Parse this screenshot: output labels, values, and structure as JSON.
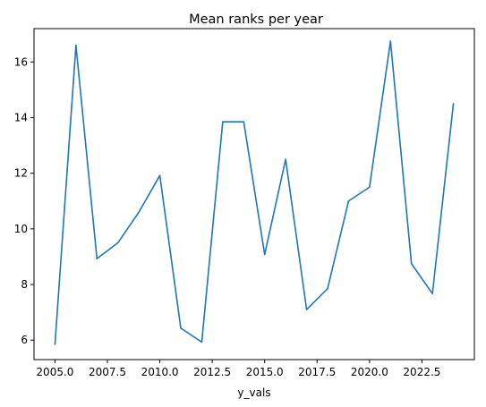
{
  "chart_data": {
    "type": "line",
    "title": "Mean ranks per year",
    "xlabel": "y_vals",
    "ylabel": "",
    "xlim": [
      2004.0,
      2025.0
    ],
    "ylim": [
      5.3,
      17.2
    ],
    "x_ticks": [
      2005.0,
      2007.5,
      2010.0,
      2012.5,
      2015.0,
      2017.5,
      2020.0,
      2022.5
    ],
    "x_tick_labels": [
      "2005.0",
      "2007.5",
      "2010.0",
      "2012.5",
      "2015.0",
      "2017.5",
      "2020.0",
      "2022.5"
    ],
    "y_ticks": [
      6,
      8,
      10,
      12,
      14,
      16
    ],
    "y_tick_labels": [
      "6",
      "8",
      "10",
      "12",
      "14",
      "16"
    ],
    "grid": false,
    "series": [
      {
        "color": "#1f77b4",
        "x": [
          2005,
          2006,
          2007,
          2008,
          2009,
          2010,
          2011,
          2012,
          2013,
          2014,
          2015,
          2016,
          2017,
          2018,
          2019,
          2020,
          2021,
          2022,
          2023,
          2024
        ],
        "y": [
          5.85,
          16.6,
          8.93,
          9.5,
          10.6,
          11.92,
          6.43,
          5.93,
          13.85,
          13.85,
          9.08,
          12.5,
          7.1,
          7.85,
          11.0,
          11.5,
          16.75,
          8.75,
          7.67,
          14.5
        ]
      }
    ]
  }
}
